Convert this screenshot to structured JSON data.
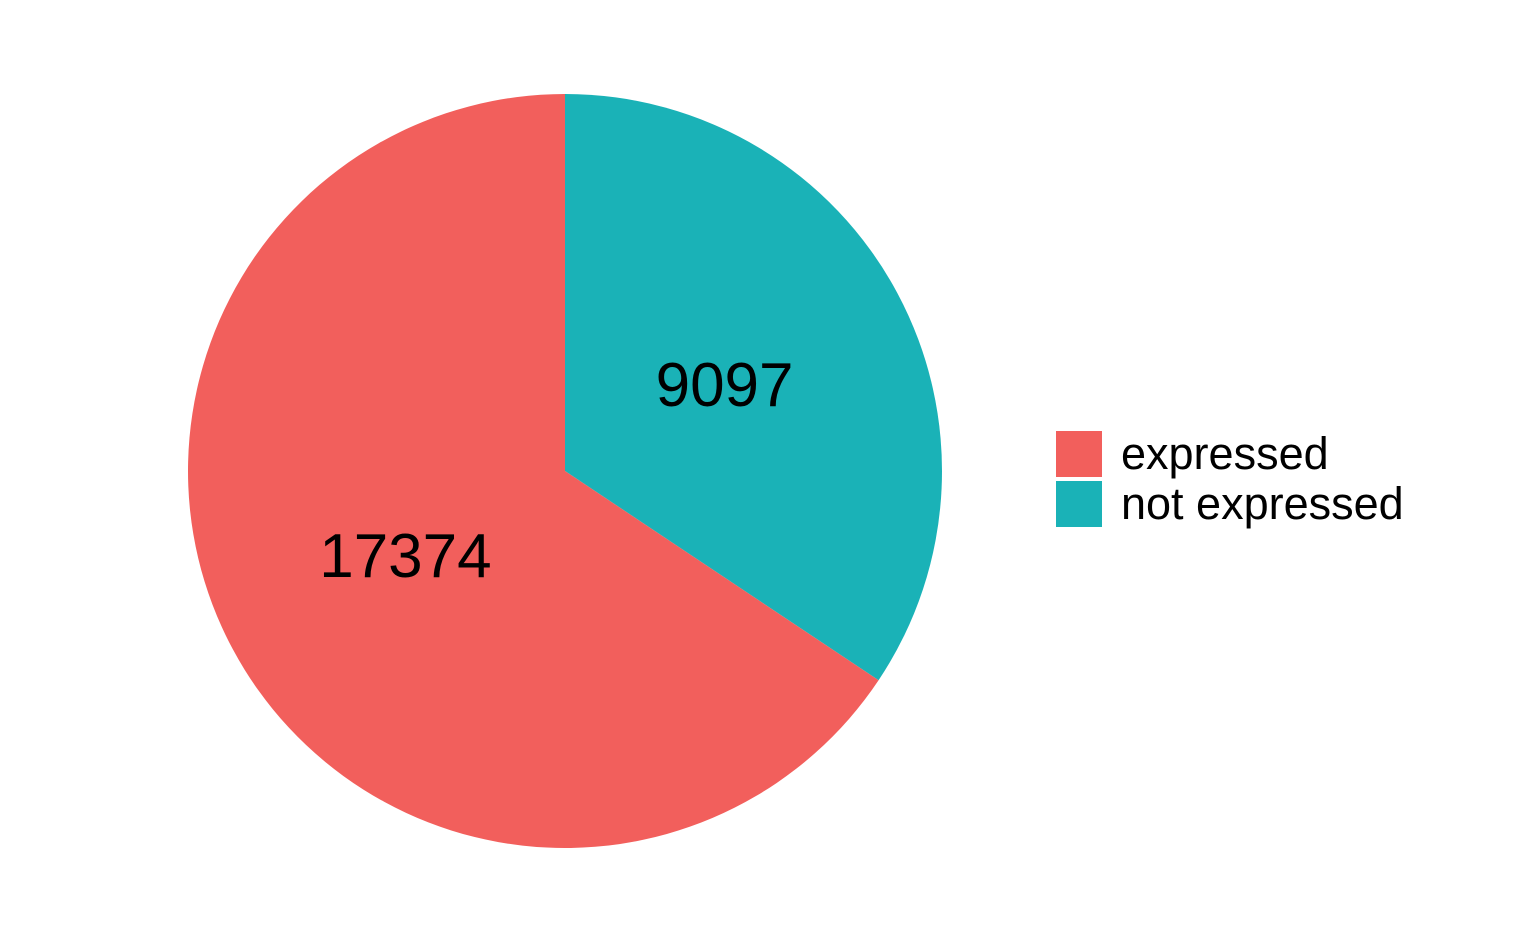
{
  "chart_data": {
    "type": "pie",
    "categories": [
      "expressed",
      "not expressed"
    ],
    "values": [
      17374,
      9097
    ],
    "colors": [
      "#F25F5C",
      "#1AB2B7"
    ],
    "slice_labels": [
      "17374",
      "9097"
    ],
    "legend": {
      "position": "right",
      "items": [
        {
          "label": "expressed",
          "color": "#F25F5C"
        },
        {
          "label": "not expressed",
          "color": "#1AB2B7"
        }
      ]
    }
  }
}
